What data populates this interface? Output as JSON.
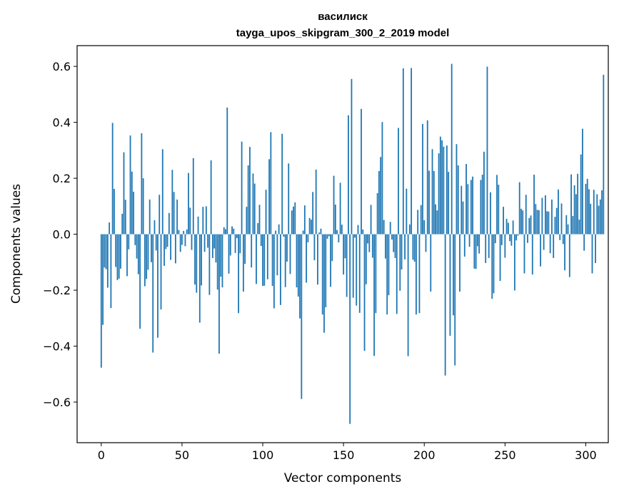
{
  "chart_data": {
    "type": "bar",
    "title": [
      "василиск",
      "tayga_upos_skipgram_300_2_2019 model"
    ],
    "xlabel": "Vector components",
    "ylabel": "Components values",
    "xlim": [
      -14.95,
      313.95
    ],
    "ylim": [
      -0.7452,
      0.6742
    ],
    "xticks": [
      0,
      50,
      100,
      150,
      200,
      250,
      300
    ],
    "yticks": [
      -0.6,
      -0.4,
      -0.2,
      0.0,
      0.2,
      0.4,
      0.6
    ],
    "ytick_labels": [
      "−0.6",
      "−0.4",
      "−0.2",
      "0.0",
      "0.2",
      "0.4",
      "0.6"
    ],
    "color": "#1f77b4",
    "grid": false,
    "legend": "none",
    "series": [
      {
        "values": [
          -0.477,
          -0.324,
          -0.119,
          -0.125,
          -0.191,
          0.042,
          -0.264,
          0.398,
          0.162,
          -0.117,
          -0.164,
          -0.159,
          -0.123,
          0.073,
          0.293,
          0.123,
          -0.15,
          -0.054,
          0.353,
          0.224,
          0.152,
          -0.039,
          -0.087,
          -0.143,
          -0.338,
          0.361,
          0.2,
          -0.186,
          -0.16,
          -0.127,
          0.124,
          -0.1,
          -0.423,
          0.05,
          -0.058,
          -0.37,
          0.141,
          -0.269,
          0.304,
          -0.113,
          -0.053,
          -0.045,
          0.076,
          -0.092,
          0.23,
          0.151,
          -0.104,
          0.124,
          0.015,
          -0.063,
          -0.038,
          0.012,
          -0.043,
          0.017,
          0.219,
          0.095,
          -0.056,
          0.272,
          -0.18,
          -0.209,
          0.063,
          -0.316,
          -0.183,
          0.098,
          -0.063,
          0.1,
          -0.048,
          -0.217,
          0.264,
          -0.085,
          -0.051,
          -0.101,
          -0.198,
          -0.427,
          -0.152,
          -0.19,
          0.025,
          0.018,
          0.453,
          -0.141,
          -0.076,
          0.028,
          0.02,
          -0.067,
          -0.014,
          -0.282,
          -0.068,
          0.331,
          -0.205,
          -0.106,
          0.098,
          0.246,
          0.312,
          -0.119,
          0.217,
          0.181,
          -0.178,
          0.04,
          0.105,
          -0.042,
          -0.185,
          -0.184,
          0.159,
          -0.161,
          0.268,
          0.365,
          -0.185,
          -0.265,
          0.013,
          -0.147,
          0.035,
          -0.253,
          0.359,
          -0.009,
          -0.189,
          -0.098,
          0.253,
          -0.142,
          0.085,
          0.099,
          0.114,
          -0.19,
          -0.223,
          -0.301,
          -0.589,
          0.013,
          0.103,
          -0.173,
          -0.029,
          0.058,
          0.052,
          0.151,
          -0.093,
          0.231,
          -0.18,
          0.006,
          0.02,
          -0.287,
          -0.352,
          -0.261,
          -0.016,
          -0.007,
          -0.188,
          -0.096,
          0.209,
          0.106,
          0.015,
          -0.029,
          0.184,
          0.034,
          -0.144,
          -0.086,
          -0.224,
          0.425,
          -0.678,
          0.555,
          -0.227,
          -0.012,
          -0.255,
          0.033,
          -0.281,
          0.448,
          0.017,
          -0.417,
          -0.179,
          -0.033,
          -0.064,
          0.105,
          -0.084,
          -0.435,
          -0.282,
          0.147,
          0.226,
          0.276,
          0.401,
          0.051,
          -0.087,
          -0.287,
          -0.218,
          0.044,
          -0.019,
          -0.064,
          -0.085,
          -0.285,
          0.38,
          -0.202,
          -0.126,
          0.593,
          -0.09,
          0.163,
          -0.436,
          0.035,
          0.594,
          -0.091,
          -0.098,
          -0.287,
          0.087,
          -0.282,
          0.104,
          0.394,
          0.05,
          -0.063,
          0.407,
          0.227,
          -0.205,
          0.304,
          0.226,
          0.107,
          0.085,
          0.289,
          0.349,
          0.336,
          0.313,
          -0.505,
          0.317,
          0.223,
          -0.363,
          0.609,
          -0.29,
          -0.469,
          0.322,
          0.246,
          -0.205,
          0.173,
          0.117,
          -0.08,
          0.251,
          0.179,
          -0.045,
          0.194,
          0.206,
          -0.123,
          -0.124,
          -0.043,
          -0.069,
          0.194,
          0.213,
          0.295,
          -0.103,
          0.599,
          -0.085,
          0.15,
          -0.231,
          -0.211,
          -0.032,
          0.212,
          0.177,
          -0.167,
          -0.039,
          0.098,
          -0.084,
          0.055,
          0.041,
          -0.025,
          -0.041,
          0.049,
          -0.201,
          -0.022,
          -0.005,
          0.186,
          0.091,
          0.085,
          -0.14,
          0.141,
          -0.031,
          0.058,
          0.067,
          -0.144,
          0.213,
          0.108,
          0.087,
          0.086,
          -0.115,
          0.13,
          -0.056,
          0.139,
          0.082,
          0.081,
          -0.068,
          0.124,
          -0.085,
          0.062,
          0.094,
          0.16,
          -0.021,
          0.11,
          -0.035,
          -0.129,
          0.068,
          0.035,
          -0.153,
          0.214,
          0.065,
          0.175,
          0.143,
          0.216,
          0.052,
          0.285,
          0.377,
          -0.059,
          0.18,
          0.198,
          0.161,
          0.109,
          -0.14,
          0.159,
          -0.103,
          0.143,
          0.102,
          0.124,
          0.157,
          0.57
        ]
      }
    ]
  }
}
